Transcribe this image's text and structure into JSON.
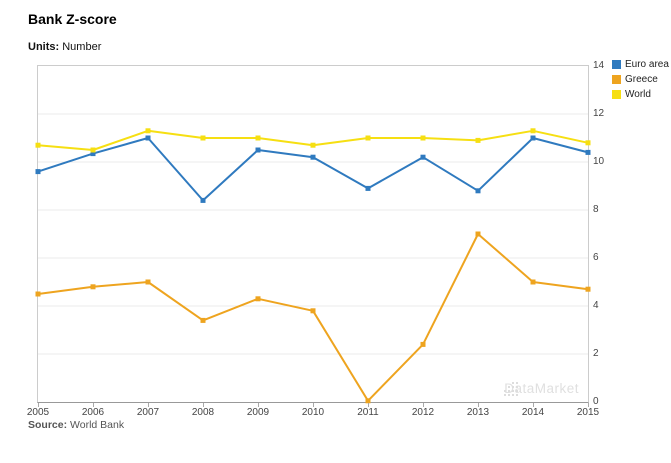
{
  "page": {
    "title": "Bank Z-score",
    "units_label": "Units:",
    "units_value": "Number",
    "source_label": "Source:",
    "source_value": "World Bank",
    "watermark": "DataMarket"
  },
  "colors": {
    "euro_area": "#2F7ABF",
    "greece": "#EEA41F",
    "world": "#F6DF12",
    "grid": "#ebebeb",
    "axis": "#999999",
    "border": "#cccccc",
    "tick": "#aaaaaa",
    "watermark": "#e0e0e0"
  },
  "chart_data": {
    "type": "line",
    "title": "Bank Z-score",
    "xlabel": "",
    "ylabel": "Number",
    "x": [
      "2005",
      "2006",
      "2007",
      "2008",
      "2009",
      "2010",
      "2011",
      "2012",
      "2013",
      "2014",
      "2015"
    ],
    "series": [
      {
        "name": "Euro area",
        "color_key": "euro_area",
        "values": [
          9.6,
          10.35,
          11.0,
          8.4,
          10.5,
          10.2,
          8.9,
          10.2,
          8.8,
          11.0,
          10.4
        ]
      },
      {
        "name": "Greece",
        "color_key": "greece",
        "values": [
          4.5,
          4.8,
          5.0,
          3.4,
          4.3,
          3.8,
          0.05,
          2.4,
          7.0,
          5.0,
          4.7
        ]
      },
      {
        "name": "World",
        "color_key": "world",
        "values": [
          10.7,
          10.5,
          11.3,
          11.0,
          11.0,
          10.7,
          11.0,
          11.0,
          10.9,
          11.3,
          10.8
        ]
      }
    ],
    "ylim": [
      0,
      14
    ],
    "yticks": [
      0,
      2,
      4,
      6,
      8,
      10,
      12,
      14
    ],
    "grid": true,
    "legend_position": "top-right",
    "y_axis_side": "right"
  }
}
